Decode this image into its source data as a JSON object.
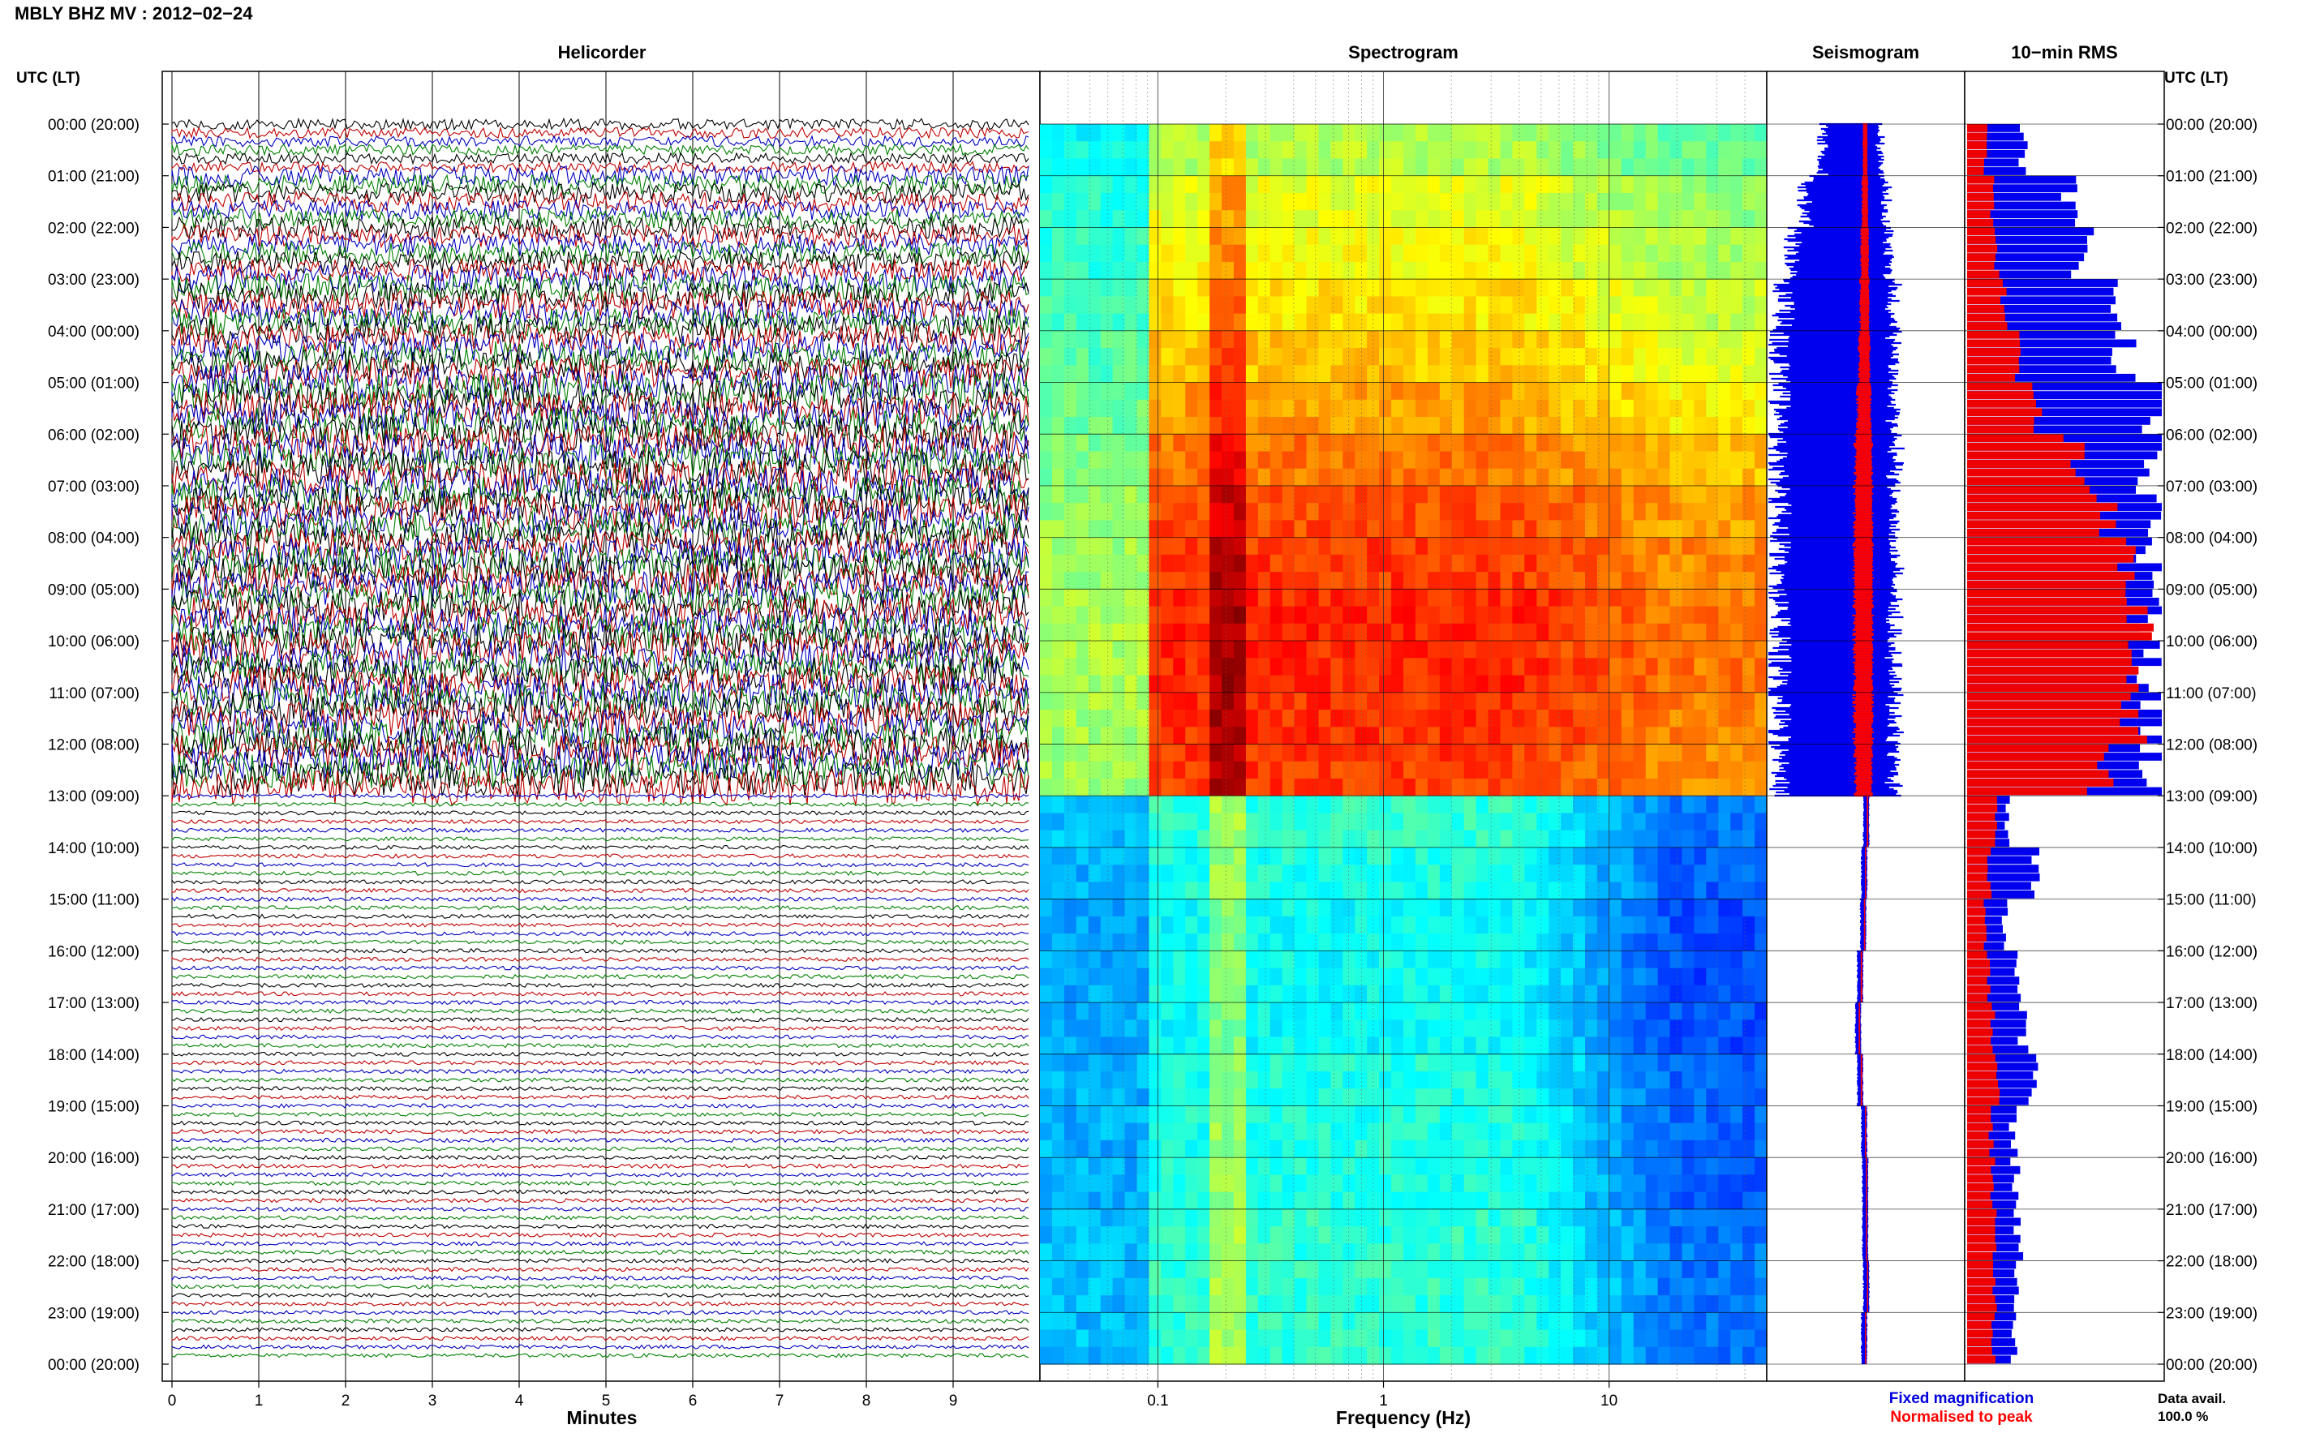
{
  "header": {
    "station_title": "MBLY BHZ MV : 2012−02−24"
  },
  "panels": {
    "helicorder": "Helicorder",
    "spectrogram": "Spectrogram",
    "seismogram": "Seismogram",
    "rms": "10−min RMS"
  },
  "axis": {
    "time_label_left": "UTC (LT)",
    "time_label_right": "UTC (LT)",
    "minutes_label": "Minutes",
    "frequency_label": "Frequency (Hz)"
  },
  "legend": {
    "fixed": "Fixed magnification",
    "normalised": "Normalised to peak",
    "fixed_color": "#0000dd",
    "normalised_color": "#ff0000"
  },
  "availability": {
    "label": "Data avail.",
    "value": "100.0 %"
  },
  "chart_data": {
    "type": "helicorder",
    "time_ticks": [
      "00:00 (20:00)",
      "01:00 (21:00)",
      "02:00 (22:00)",
      "03:00 (23:00)",
      "04:00 (00:00)",
      "05:00 (01:00)",
      "06:00 (02:00)",
      "07:00 (03:00)",
      "08:00 (04:00)",
      "09:00 (05:00)",
      "10:00 (06:00)",
      "11:00 (07:00)",
      "12:00 (08:00)",
      "13:00 (09:00)",
      "14:00 (10:00)",
      "15:00 (11:00)",
      "16:00 (12:00)",
      "17:00 (13:00)",
      "18:00 (14:00)",
      "19:00 (15:00)",
      "20:00 (16:00)",
      "21:00 (17:00)",
      "22:00 (18:00)",
      "23:00 (19:00)",
      "00:00 (20:00)"
    ],
    "minutes_ticks": [
      "0",
      "1",
      "2",
      "3",
      "4",
      "5",
      "6",
      "7",
      "8",
      "9"
    ],
    "frequency_ticks": [
      "0.1",
      "1",
      "10"
    ],
    "frequency_range_hz": [
      0.03,
      50
    ],
    "helicorder_trace_colors": [
      "#000000",
      "#c00000",
      "#0000c0",
      "#008000"
    ],
    "rms_fixed_hourly": [
      0.3,
      0.55,
      0.62,
      0.78,
      0.85,
      1.0,
      1.0,
      1.0,
      1.0,
      1.0,
      1.0,
      1.0,
      1.0,
      0.22,
      0.38,
      0.2,
      0.28,
      0.3,
      0.36,
      0.25,
      0.26,
      0.28,
      0.28,
      0.26
    ],
    "rms_normalised_hourly": [
      0.1,
      0.14,
      0.16,
      0.2,
      0.28,
      0.38,
      0.58,
      0.74,
      0.86,
      0.92,
      0.94,
      0.9,
      0.72,
      0.16,
      0.12,
      0.1,
      0.12,
      0.14,
      0.16,
      0.13,
      0.14,
      0.15,
      0.15,
      0.14
    ],
    "seismogram_fixed_hourly": [
      0.5,
      0.7,
      0.85,
      0.95,
      1.0,
      1.0,
      1.0,
      1.0,
      1.0,
      1.0,
      1.0,
      1.0,
      1.0,
      0.05,
      0.05,
      0.05,
      0.05,
      0.05,
      0.05,
      0.05,
      0.05,
      0.05,
      0.05,
      0.05
    ],
    "seismogram_normalised_hourly": [
      0.15,
      0.2,
      0.25,
      0.3,
      0.35,
      0.45,
      0.55,
      0.6,
      0.6,
      0.6,
      0.6,
      0.6,
      0.55,
      0.05,
      0.04,
      0.04,
      0.05,
      0.05,
      0.05,
      0.04,
      0.04,
      0.04,
      0.04,
      0.04
    ],
    "seismogram_drift_hourly": [
      0.0,
      0.0,
      0.0,
      0.0,
      0.0,
      0.0,
      0.0,
      0.0,
      0.0,
      0.0,
      0.0,
      0.0,
      0.0,
      0.1,
      0.0,
      -0.05,
      -0.2,
      -0.3,
      -0.2,
      0.0,
      0.05,
      0.05,
      0.1,
      0.0
    ],
    "spectrogram_intensity_hourly": [
      0.55,
      0.6,
      0.62,
      0.65,
      0.68,
      0.72,
      0.76,
      0.8,
      0.82,
      0.84,
      0.84,
      0.83,
      0.82,
      0.42,
      0.4,
      0.38,
      0.38,
      0.38,
      0.4,
      0.4,
      0.4,
      0.42,
      0.42,
      0.42
    ]
  }
}
